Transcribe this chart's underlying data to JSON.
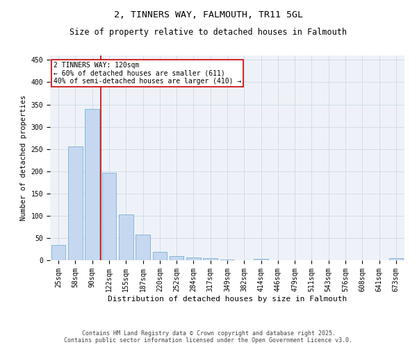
{
  "title": "2, TINNERS WAY, FALMOUTH, TR11 5GL",
  "subtitle": "Size of property relative to detached houses in Falmouth",
  "xlabel": "Distribution of detached houses by size in Falmouth",
  "ylabel": "Number of detached properties",
  "categories": [
    "25sqm",
    "58sqm",
    "90sqm",
    "122sqm",
    "155sqm",
    "187sqm",
    "220sqm",
    "252sqm",
    "284sqm",
    "317sqm",
    "349sqm",
    "382sqm",
    "414sqm",
    "446sqm",
    "479sqm",
    "511sqm",
    "543sqm",
    "576sqm",
    "608sqm",
    "641sqm",
    "673sqm"
  ],
  "values": [
    35,
    255,
    340,
    197,
    103,
    57,
    18,
    10,
    7,
    4,
    2,
    0,
    3,
    0,
    0,
    0,
    0,
    0,
    0,
    0,
    4
  ],
  "bar_color": "#c5d8f0",
  "bar_edge_color": "#7bafd4",
  "vline_color": "#cc0000",
  "annotation_text": "2 TINNERS WAY: 120sqm\n← 60% of detached houses are smaller (611)\n40% of semi-detached houses are larger (410) →",
  "annotation_box_color": "#ffffff",
  "annotation_box_edge_color": "#cc0000",
  "ylim": [
    0,
    460
  ],
  "yticks": [
    0,
    50,
    100,
    150,
    200,
    250,
    300,
    350,
    400,
    450
  ],
  "grid_color": "#d0d8e8",
  "background_color": "#eef2f8",
  "footer": "Contains HM Land Registry data © Crown copyright and database right 2025.\nContains public sector information licensed under the Open Government Licence v3.0.",
  "title_fontsize": 9.5,
  "subtitle_fontsize": 8.5,
  "xlabel_fontsize": 8,
  "ylabel_fontsize": 7.5,
  "tick_fontsize": 7,
  "annotation_fontsize": 7,
  "footer_fontsize": 6
}
